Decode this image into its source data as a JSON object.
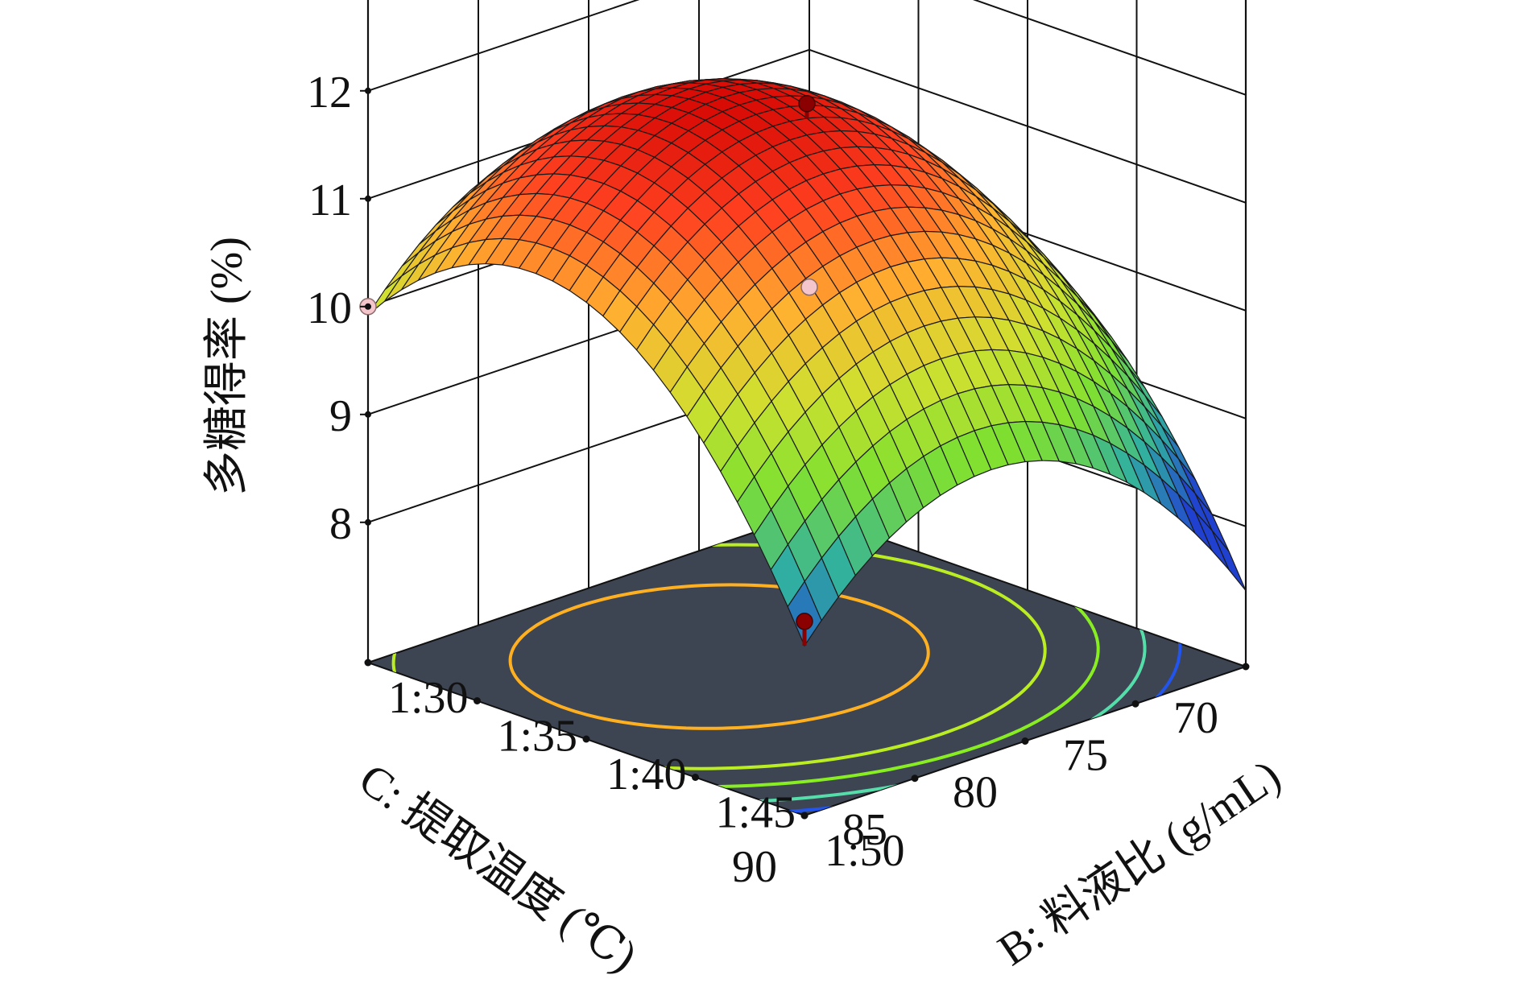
{
  "chart_data": {
    "type": "surface3d",
    "title": "",
    "zlabel": "多糖得率 (%)",
    "xlabel": "B: 料液比 (g/mL)",
    "ylabel": "C: 提取温度 (℃)",
    "x_ticks": [
      "1:30",
      "1:35",
      "1:40",
      "1:45",
      "1:50"
    ],
    "y_ticks": [
      "70",
      "75",
      "80",
      "85",
      "90"
    ],
    "z_ticks": [
      "8",
      "9",
      "10",
      "11",
      "12"
    ],
    "x_range": [
      30,
      50
    ],
    "y_range": [
      70,
      90
    ],
    "zlim": [
      8,
      12
    ],
    "surface_model": {
      "center_x": 37.5,
      "center_y": 81.5,
      "peak": 11.9,
      "a": 0.0165,
      "b": 0.0145
    },
    "contour_levels": [
      8.5,
      9.0,
      9.6,
      10.2,
      11.2
    ],
    "contour_colors": [
      "#2255ee",
      "#55ddaa",
      "#88ee22",
      "#bbee22",
      "#ffb020"
    ],
    "design_points": [
      {
        "x": 40,
        "y": 80,
        "z": 11.9,
        "above_surface": true
      },
      {
        "x": 30,
        "y": 90,
        "z": 10.0,
        "above_surface": false
      },
      {
        "x": 50,
        "y": 90,
        "z": 8.5,
        "above_surface": true
      },
      {
        "x": 30,
        "y": 70,
        "z": 8.8,
        "above_surface": false
      }
    ],
    "colormap": [
      "#2040d0",
      "#30b0a0",
      "#80e030",
      "#d0e030",
      "#ffb030",
      "#ff4020",
      "#d00000"
    ],
    "floor_color": "#3d4452",
    "grid": true
  }
}
